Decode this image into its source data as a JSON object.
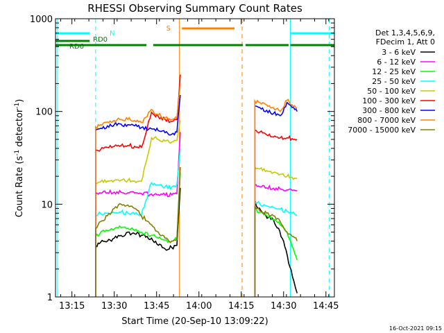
{
  "chart_data": {
    "type": "line",
    "title": "RHESSI Observing Summary Count Rates",
    "xlabel": "Start Time (20-Sep-10 13:09:22)",
    "ylabel_parts": [
      "Count Rate (s",
      "-1",
      " detector",
      "-1",
      ")"
    ],
    "y_scale": "log",
    "ylim": [
      1,
      1000
    ],
    "y_ticks": [
      {
        "value": 1,
        "label": "1"
      },
      {
        "value": 10,
        "label": "10"
      },
      {
        "value": 100,
        "label": "100"
      },
      {
        "value": 1000,
        "label": "1000"
      }
    ],
    "xlim": [
      13.153,
      14.8
    ],
    "x_ticks": [
      {
        "value": 13.25,
        "label": "13:15"
      },
      {
        "value": 13.5,
        "label": "13:30"
      },
      {
        "value": 13.75,
        "label": "13:45"
      },
      {
        "value": 14.0,
        "label": "14:00"
      },
      {
        "value": 14.25,
        "label": "14:15"
      },
      {
        "value": 14.5,
        "label": "14:30"
      },
      {
        "value": 14.75,
        "label": "14:45"
      }
    ],
    "legend_header": [
      "Det 1,3,4,5,6,9,",
      "FDecim 1, Att 0"
    ],
    "legend_position": "right",
    "series": [
      {
        "name": "3 - 6 keV",
        "color": "#000000",
        "x": [
          13.39,
          13.42,
          13.46,
          13.5,
          13.54,
          13.58,
          13.62,
          13.66,
          13.72,
          13.76,
          13.8,
          13.84,
          13.87,
          13.89,
          14.33,
          14.35,
          14.38,
          14.41,
          14.44,
          14.47,
          14.5,
          14.53,
          14.56,
          14.58
        ],
        "y": [
          3.6,
          3.9,
          4.0,
          4.3,
          4.6,
          5.0,
          4.8,
          4.6,
          4.3,
          3.6,
          3.3,
          3.4,
          3.6,
          15,
          11,
          9,
          8,
          7.2,
          6.8,
          5.5,
          4,
          2.3,
          1.5,
          1.1
        ]
      },
      {
        "name": "6 - 12 keV",
        "color": "#ff00ff",
        "x": [
          13.39,
          13.42,
          13.46,
          13.5,
          13.54,
          13.58,
          13.62,
          13.66,
          13.72,
          13.76,
          13.8,
          13.84,
          13.87,
          13.89,
          14.33,
          14.36,
          14.4,
          14.44,
          14.48,
          14.52,
          14.55,
          14.58
        ],
        "y": [
          12.8,
          13.2,
          13.3,
          13.5,
          13.4,
          13.3,
          13.2,
          13.0,
          12.9,
          12.7,
          12.5,
          12.6,
          13.0,
          60,
          16,
          15.4,
          15.0,
          14.9,
          14.6,
          14.3,
          14.1,
          14.0
        ]
      },
      {
        "name": "12 - 25 keV",
        "color": "#00ff00",
        "x": [
          13.39,
          13.42,
          13.46,
          13.5,
          13.54,
          13.58,
          13.62,
          13.66,
          13.72,
          13.76,
          13.8,
          13.84,
          13.87,
          13.89,
          14.33,
          14.36,
          14.4,
          14.44,
          14.48,
          14.52,
          14.55,
          14.58
        ],
        "y": [
          4.5,
          5.0,
          5.2,
          5.4,
          5.6,
          5.5,
          5.2,
          5.0,
          4.6,
          4.3,
          4.1,
          4.0,
          4.2,
          22,
          9.0,
          8.2,
          7.5,
          6.8,
          6.0,
          5.0,
          3.5,
          2.5
        ]
      },
      {
        "name": "25 - 50 keV",
        "color": "#00ffff",
        "x": [
          13.39,
          13.42,
          13.46,
          13.5,
          13.54,
          13.58,
          13.62,
          13.66,
          13.72,
          13.76,
          13.8,
          13.84,
          13.87,
          13.89,
          14.33,
          14.36,
          14.4,
          14.44,
          14.48,
          14.52,
          14.55,
          14.58
        ],
        "y": [
          7.5,
          7.9,
          8.0,
          8.1,
          8.2,
          8.0,
          7.8,
          7.6,
          17.0,
          16.0,
          15.5,
          15.3,
          16.5,
          40,
          10.5,
          10.0,
          9.6,
          9.2,
          8.8,
          8.4,
          8.0,
          7.6
        ]
      },
      {
        "name": "50 - 100 keV",
        "color": "#c8c800",
        "x": [
          13.39,
          13.42,
          13.46,
          13.5,
          13.54,
          13.58,
          13.62,
          13.66,
          13.72,
          13.76,
          13.8,
          13.84,
          13.87,
          13.89,
          14.33,
          14.36,
          14.4,
          14.44,
          14.48,
          14.52,
          14.55,
          14.58
        ],
        "y": [
          17.0,
          17.5,
          17.8,
          18.0,
          18.2,
          18.0,
          17.8,
          17.6,
          52,
          50,
          48,
          47,
          49,
          80,
          25,
          24,
          23,
          22,
          21,
          20,
          19.5,
          19
        ]
      },
      {
        "name": "100 - 300 keV",
        "color": "#ff0000",
        "x": [
          13.39,
          13.42,
          13.46,
          13.5,
          13.54,
          13.58,
          13.62,
          13.66,
          13.72,
          13.76,
          13.8,
          13.84,
          13.87,
          13.89,
          14.33,
          14.36,
          14.4,
          14.44,
          14.48,
          14.52,
          14.55,
          14.58
        ],
        "y": [
          38,
          39,
          41,
          42,
          43,
          43,
          42,
          41,
          98,
          88,
          82,
          78,
          82,
          250,
          63,
          60,
          56,
          53,
          52,
          52,
          51,
          50
        ]
      },
      {
        "name": "300 - 800 keV",
        "color": "#0000ff",
        "x": [
          13.39,
          13.42,
          13.46,
          13.5,
          13.54,
          13.58,
          13.62,
          13.66,
          13.72,
          13.76,
          13.8,
          13.84,
          13.87,
          13.89,
          14.33,
          14.36,
          14.4,
          14.44,
          14.48,
          14.52,
          14.55,
          14.58
        ],
        "y": [
          63,
          66,
          70,
          72,
          73,
          72,
          70,
          67,
          65,
          62,
          59,
          57,
          60,
          150,
          115,
          110,
          103,
          95,
          90,
          125,
          110,
          100
        ]
      },
      {
        "name": "800 - 7000 keV",
        "color": "#ff8000",
        "x": [
          13.39,
          13.42,
          13.46,
          13.5,
          13.54,
          13.58,
          13.62,
          13.66,
          13.72,
          13.76,
          13.8,
          13.84,
          13.87,
          13.89,
          14.33,
          14.36,
          14.4,
          14.44,
          14.48,
          14.52,
          14.55,
          14.58
        ],
        "y": [
          68,
          72,
          77,
          80,
          82,
          82,
          80,
          76,
          105,
          92,
          85,
          82,
          86,
          200,
          130,
          125,
          118,
          110,
          100,
          132,
          118,
          108
        ]
      },
      {
        "name": "7000 - 15000 keV",
        "color": "#808000",
        "x": [
          13.39,
          13.42,
          13.46,
          13.5,
          13.54,
          13.58,
          13.62,
          13.66,
          13.72,
          13.76,
          13.8,
          13.84,
          13.87,
          13.89,
          14.33,
          14.36,
          14.4,
          14.44,
          14.48,
          14.52,
          14.55,
          14.58
        ],
        "y": [
          5.5,
          6.5,
          7.5,
          9.0,
          10.0,
          9.8,
          9.0,
          7.5,
          6.0,
          5.0,
          4.3,
          4.0,
          4.3,
          25,
          9.5,
          8.5,
          8.0,
          7.5,
          6.5,
          5.0,
          4.5,
          4.0
        ]
      }
    ],
    "flags": [
      {
        "label": "N",
        "color": "#00ffff",
        "segments": [
          [
            13.153,
            13.355
          ],
          [
            14.54,
            14.8
          ]
        ]
      },
      {
        "label": "S",
        "color": "#ff8000",
        "segments": [
          [
            13.9,
            14.21
          ]
        ]
      },
      {
        "label": "RD0",
        "color": "#008000",
        "segments": [
          [
            13.153,
            13.355
          ]
        ]
      },
      {
        "label": "RD6",
        "color": "#008000",
        "segments": [
          [
            13.153,
            13.69
          ],
          [
            13.73,
            14.26
          ],
          [
            14.275,
            14.53
          ],
          [
            14.54,
            14.8
          ]
        ]
      }
    ],
    "vlines": [
      {
        "x": 13.165,
        "color": "#00ffff",
        "style": "solid"
      },
      {
        "x": 13.39,
        "color": "#00ffff",
        "style": "dashed"
      },
      {
        "x": 13.885,
        "color": "#ff8000",
        "style": "solid"
      },
      {
        "x": 14.255,
        "color": "#ff8000",
        "style": "dashed"
      },
      {
        "x": 14.54,
        "color": "#00ffff",
        "style": "solid"
      },
      {
        "x": 14.77,
        "color": "#00ffff",
        "style": "dashed"
      }
    ],
    "footer_stamp": "16-Oct-2021 09:15"
  }
}
